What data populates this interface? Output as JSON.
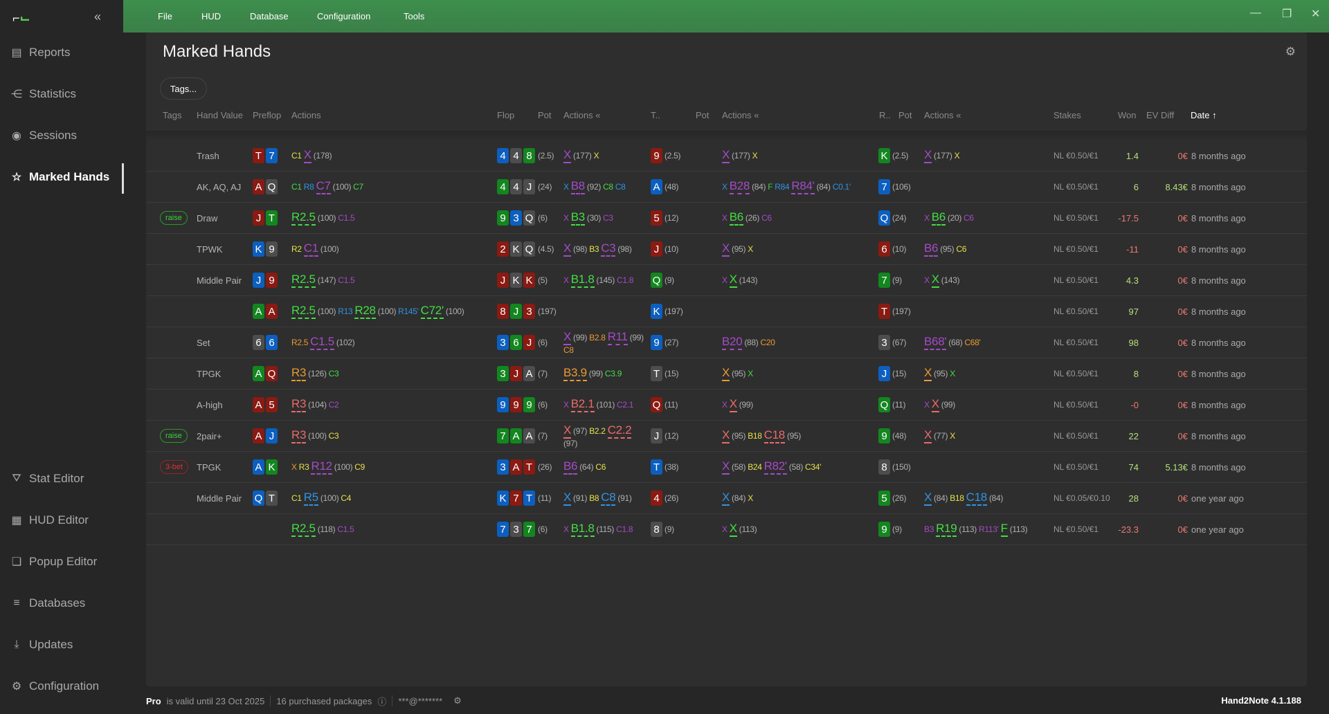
{
  "app": {
    "logo": "H",
    "version": "Hand2Note 4.1.188"
  },
  "menu": [
    "File",
    "HUD",
    "Database",
    "Configuration",
    "Tools"
  ],
  "sidebar": {
    "top": [
      {
        "label": "Reports",
        "icon": "report-icon"
      },
      {
        "label": "Statistics",
        "icon": "statistics-icon"
      },
      {
        "label": "Sessions",
        "icon": "sessions-icon"
      },
      {
        "label": "Marked Hands",
        "icon": "marked-hands-icon",
        "active": true
      }
    ],
    "bottom": [
      {
        "label": "Stat Editor",
        "icon": "filter-icon"
      },
      {
        "label": "HUD Editor",
        "icon": "hud-editor-icon"
      },
      {
        "label": "Popup Editor",
        "icon": "popup-editor-icon"
      },
      {
        "label": "Databases",
        "icon": "database-icon"
      },
      {
        "label": "Updates",
        "icon": "download-icon"
      },
      {
        "label": "Configuration",
        "icon": "gear-icon"
      }
    ]
  },
  "page": {
    "title": "Marked Hands",
    "tags_button": "Tags..."
  },
  "columns": {
    "tags": "Tags",
    "hand_value": "Hand Value",
    "preflop": "Preflop",
    "pf_actions": "Actions",
    "flop": "Flop",
    "flop_pot": "Pot",
    "flop_actions": "Actions",
    "turn": "T..",
    "turn_pot": "Pot",
    "turn_actions": "Actions",
    "river": "R..",
    "river_pot": "Pot",
    "river_actions": "Actions",
    "stakes": "Stakes",
    "won": "Won",
    "ev": "EV Diff",
    "date": "Date ↑"
  },
  "colors": {
    "r": "#8a1a12",
    "b": "#0c5fbf",
    "g": "#13861f",
    "s": "#4d4d4d",
    "ty": "#e6e24a",
    "tp": "#a64ac9",
    "tg": "#44dd44",
    "tb": "#2f93e6",
    "to": "#eb9a32",
    "tr": "#ec6a6a",
    "tf": "#44c444",
    "tw": "#b0b0b0",
    "pos": "#b6e07a",
    "neg": "#ea7a70"
  },
  "rows": [
    {
      "tag": "",
      "hv": "Trash",
      "pf": [
        "Tr",
        "7b"
      ],
      "pfa": [
        [
          "C1",
          "ty"
        ],
        [
          "X",
          "tp",
          1
        ],
        [
          "(178)",
          "tw"
        ]
      ],
      "flop": [
        "4b",
        "4s",
        "8g"
      ],
      "fp": "(2.5)",
      "fa": [
        [
          "X",
          "tp",
          1
        ],
        [
          "(177)",
          "tw"
        ],
        [
          "X",
          "ty"
        ]
      ],
      "turn": "9r",
      "tp": "(2.5)",
      "ta": [
        [
          "X",
          "tp",
          1
        ],
        [
          "(177)",
          "tw"
        ],
        [
          "X",
          "ty"
        ]
      ],
      "river": "Kg",
      "rp": "(2.5)",
      "ra": [
        [
          "X",
          "tp",
          1
        ],
        [
          "(177)",
          "tw"
        ],
        [
          "X",
          "ty"
        ]
      ],
      "stakes": "NL €0.50/€1",
      "won": "1.4",
      "ev": "0€",
      "date": "8 months ago"
    },
    {
      "tag": "",
      "hv": "AK, AQ, AJ",
      "pf": [
        "Ar",
        "Qs"
      ],
      "pfa": [
        [
          "C1",
          "tg"
        ],
        [
          "R8",
          "tb"
        ],
        [
          "C7",
          "tp",
          1
        ],
        [
          "(100)",
          "tw"
        ],
        [
          "C7",
          "tg"
        ]
      ],
      "flop": [
        "4g",
        "4s",
        "Js"
      ],
      "fp": "(24)",
      "fa": [
        [
          "X",
          "tb"
        ],
        [
          "B8",
          "tp",
          1
        ],
        [
          "(92)",
          "tw"
        ],
        [
          "C8",
          "tg"
        ],
        [
          "C8",
          "tb"
        ]
      ],
      "turn": "Ab",
      "tp": "(48)",
      "ta": [
        [
          "X",
          "tb"
        ],
        [
          "B28",
          "tp",
          1
        ],
        [
          "(84)",
          "tw"
        ],
        [
          "F",
          "tf"
        ],
        [
          "R84",
          "tb"
        ],
        [
          "R84'",
          "tp",
          1
        ],
        [
          "(84)",
          "tw"
        ],
        [
          "C0.1'",
          "tb"
        ]
      ],
      "river": "7b",
      "rp": "(106)",
      "ra": [],
      "stakes": "NL €0.50/€1",
      "won": "6",
      "ev": "8.43€",
      "date": "8 months ago"
    },
    {
      "tag": "raise",
      "hv": "Draw",
      "pf": [
        "Jr",
        "Tg"
      ],
      "pfa": [
        [
          "R2.5",
          "tg",
          1
        ],
        [
          "(100)",
          "tw"
        ],
        [
          "C1.5",
          "tp"
        ]
      ],
      "flop": [
        "9g",
        "3b",
        "Qs"
      ],
      "fp": "(6)",
      "fa": [
        [
          "X",
          "tp"
        ],
        [
          "B3",
          "tg",
          1
        ],
        [
          "(30)",
          "tw"
        ],
        [
          "C3",
          "tp"
        ]
      ],
      "turn": "5r",
      "tp": "(12)",
      "ta": [
        [
          "X",
          "tp"
        ],
        [
          "B6",
          "tg",
          1
        ],
        [
          "(26)",
          "tw"
        ],
        [
          "C6",
          "tp"
        ]
      ],
      "river": "Qb",
      "rp": "(24)",
      "ra": [
        [
          "X",
          "tp"
        ],
        [
          "B6",
          "tg",
          1
        ],
        [
          "(20)",
          "tw"
        ],
        [
          "C6",
          "tp"
        ]
      ],
      "stakes": "NL €0.50/€1",
      "won": "-17.5",
      "ev": "0€",
      "date": "8 months ago"
    },
    {
      "tag": "",
      "hv": "TPWK",
      "pf": [
        "Kb",
        "9s"
      ],
      "pfa": [
        [
          "R2",
          "ty"
        ],
        [
          "C1",
          "tp",
          1
        ],
        [
          "(100)",
          "tw"
        ]
      ],
      "flop": [
        "2r",
        "Ks",
        "Qs"
      ],
      "fp": "(4.5)",
      "fa": [
        [
          "X",
          "tp",
          1
        ],
        [
          "(98)",
          "tw"
        ],
        [
          "B3",
          "ty"
        ],
        [
          "C3",
          "tp",
          1
        ],
        [
          "(98)",
          "tw"
        ]
      ],
      "turn": "Jr",
      "tp": "(10)",
      "ta": [
        [
          "X",
          "tp",
          1
        ],
        [
          "(95)",
          "tw"
        ],
        [
          "X",
          "ty"
        ]
      ],
      "river": "6r",
      "rp": "(10)",
      "ra": [
        [
          "B6",
          "tp",
          1
        ],
        [
          "(95)",
          "tw"
        ],
        [
          "C6",
          "ty"
        ]
      ],
      "stakes": "NL €0.50/€1",
      "won": "-11",
      "ev": "0€",
      "date": "8 months ago"
    },
    {
      "tag": "",
      "hv": "Middle Pair",
      "pf": [
        "Jb",
        "9r"
      ],
      "pfa": [
        [
          "R2.5",
          "tg",
          1
        ],
        [
          "(147)",
          "tw"
        ],
        [
          "C1.5",
          "tp"
        ]
      ],
      "flop": [
        "Jr",
        "Ks",
        "Kr"
      ],
      "fp": "(5)",
      "fa": [
        [
          "X",
          "tp"
        ],
        [
          "B1.8",
          "tg",
          1
        ],
        [
          "(145)",
          "tw"
        ],
        [
          "C1.8",
          "tp"
        ]
      ],
      "turn": "Qg",
      "tp": "(9)",
      "ta": [
        [
          "X",
          "tp"
        ],
        [
          "X",
          "tg",
          1
        ],
        [
          "(143)",
          "tw"
        ]
      ],
      "river": "7g",
      "rp": "(9)",
      "ra": [
        [
          "X",
          "tp"
        ],
        [
          "X",
          "tg",
          1
        ],
        [
          "(143)",
          "tw"
        ]
      ],
      "stakes": "NL €0.50/€1",
      "won": "4.3",
      "ev": "0€",
      "date": "8 months ago"
    },
    {
      "tag": "",
      "hv": "",
      "pf": [
        "Ag",
        "Ar"
      ],
      "pfa": [
        [
          "R2.5",
          "tg",
          1
        ],
        [
          "(100)",
          "tw"
        ],
        [
          "R13",
          "tb"
        ],
        [
          "R28",
          "tg",
          1
        ],
        [
          "(100)",
          "tw"
        ],
        [
          "R145'",
          "tb"
        ],
        [
          "C72'",
          "tg",
          1
        ],
        [
          "(100)",
          "tw"
        ]
      ],
      "flop": [
        "8r",
        "Jg",
        "3r"
      ],
      "fp": "(197)",
      "fa": [],
      "turn": "Kb",
      "tp": "(197)",
      "ta": [],
      "river": "Tr",
      "rp": "(197)",
      "ra": [],
      "stakes": "NL €0.50/€1",
      "won": "97",
      "ev": "0€",
      "date": "8 months ago"
    },
    {
      "tag": "",
      "hv": "Set",
      "pf": [
        "6s",
        "6b"
      ],
      "pfa": [
        [
          "R2.5",
          "to"
        ],
        [
          "C1.5",
          "tp",
          1
        ],
        [
          "(102)",
          "tw"
        ]
      ],
      "flop": [
        "3b",
        "6g",
        "Jr"
      ],
      "fp": "(6)",
      "fa": [
        [
          "X",
          "tp",
          1
        ],
        [
          "(99)",
          "tw"
        ],
        [
          "B2.8",
          "to"
        ],
        [
          "R11",
          "tp",
          1
        ],
        [
          "(99)",
          "tw"
        ],
        [
          "C8",
          "to"
        ]
      ],
      "turn": "9b",
      "tp": "(27)",
      "ta": [
        [
          "B20",
          "tp",
          1
        ],
        [
          "(88)",
          "tw"
        ],
        [
          "C20",
          "to"
        ]
      ],
      "river": "3s",
      "rp": "(67)",
      "ra": [
        [
          "B68'",
          "tp",
          1
        ],
        [
          "(68)",
          "tw"
        ],
        [
          "C68'",
          "to"
        ]
      ],
      "stakes": "NL €0.50/€1",
      "won": "98",
      "ev": "0€",
      "date": "8 months ago"
    },
    {
      "tag": "",
      "hv": "TPGK",
      "pf": [
        "Ag",
        "Qr"
      ],
      "pfa": [
        [
          "R3",
          "to",
          1
        ],
        [
          "(126)",
          "tw"
        ],
        [
          "C3",
          "tg"
        ]
      ],
      "flop": [
        "3g",
        "Jr",
        "As"
      ],
      "fp": "(7)",
      "fa": [
        [
          "B3.9",
          "to",
          1
        ],
        [
          "(99)",
          "tw"
        ],
        [
          "C3.9",
          "tg"
        ]
      ],
      "turn": "Ts",
      "tp": "(15)",
      "ta": [
        [
          "X",
          "to",
          1
        ],
        [
          "(95)",
          "tw"
        ],
        [
          "X",
          "tg"
        ]
      ],
      "river": "Jb",
      "rp": "(15)",
      "ra": [
        [
          "X",
          "to",
          1
        ],
        [
          "(95)",
          "tw"
        ],
        [
          "X",
          "tg"
        ]
      ],
      "stakes": "NL €0.50/€1",
      "won": "8",
      "ev": "0€",
      "date": "8 months ago"
    },
    {
      "tag": "",
      "hv": "A-high",
      "pf": [
        "Ar",
        "5r"
      ],
      "pfa": [
        [
          "R3",
          "tr",
          1
        ],
        [
          "(104)",
          "tw"
        ],
        [
          "C2",
          "tp"
        ]
      ],
      "flop": [
        "9b",
        "9r",
        "9g"
      ],
      "fp": "(6)",
      "fa": [
        [
          "X",
          "tp"
        ],
        [
          "B2.1",
          "tr",
          1
        ],
        [
          "(101)",
          "tw"
        ],
        [
          "C2.1",
          "tp"
        ]
      ],
      "turn": "Qr",
      "tp": "(11)",
      "ta": [
        [
          "X",
          "tp"
        ],
        [
          "X",
          "tr",
          1
        ],
        [
          "(99)",
          "tw"
        ]
      ],
      "river": "Qg",
      "rp": "(11)",
      "ra": [
        [
          "X",
          "tp"
        ],
        [
          "X",
          "tr",
          1
        ],
        [
          "(99)",
          "tw"
        ]
      ],
      "stakes": "NL €0.50/€1",
      "won": "-0",
      "ev": "0€",
      "date": "8 months ago"
    },
    {
      "tag": "raise",
      "hv": "2pair+",
      "pf": [
        "Ar",
        "Jb"
      ],
      "pfa": [
        [
          "R3",
          "tr",
          1
        ],
        [
          "(100)",
          "tw"
        ],
        [
          "C3",
          "ty"
        ]
      ],
      "flop": [
        "7g",
        "Ag",
        "As"
      ],
      "fp": "(7)",
      "fa": [
        [
          "X",
          "tr",
          1
        ],
        [
          "(97)",
          "tw"
        ],
        [
          "B2.2",
          "ty"
        ],
        [
          "C2.2",
          "tr",
          1
        ],
        [
          "(97)",
          "tw"
        ]
      ],
      "turn": "Js",
      "tp": "(12)",
      "ta": [
        [
          "X",
          "tr",
          1
        ],
        [
          "(95)",
          "tw"
        ],
        [
          "B18",
          "ty"
        ],
        [
          "C18",
          "tr",
          1
        ],
        [
          "(95)",
          "tw"
        ]
      ],
      "river": "9g",
      "rp": "(48)",
      "ra": [
        [
          "X",
          "tr",
          1
        ],
        [
          "(77)",
          "tw"
        ],
        [
          "X",
          "ty"
        ]
      ],
      "stakes": "NL €0.50/€1",
      "won": "22",
      "ev": "0€",
      "date": "8 months ago"
    },
    {
      "tag": "3-bet",
      "hv": "TPGK",
      "pf": [
        "Ab",
        "Kg"
      ],
      "pfa": [
        [
          "X",
          "to"
        ],
        [
          "R3",
          "ty"
        ],
        [
          "R12",
          "tp",
          1
        ],
        [
          "(100)",
          "tw"
        ],
        [
          "C9",
          "ty"
        ]
      ],
      "flop": [
        "3b",
        "Ar",
        "Tr"
      ],
      "fp": "(26)",
      "fa": [
        [
          "B6",
          "tp",
          1
        ],
        [
          "(64)",
          "tw"
        ],
        [
          "C6",
          "ty"
        ]
      ],
      "turn": "Tb",
      "tp": "(38)",
      "ta": [
        [
          "X",
          "tp",
          1
        ],
        [
          "(58)",
          "tw"
        ],
        [
          "B24",
          "ty"
        ],
        [
          "R82'",
          "tp",
          1
        ],
        [
          "(58)",
          "tw"
        ],
        [
          "C34'",
          "ty"
        ]
      ],
      "river": "8s",
      "rp": "(150)",
      "ra": [],
      "stakes": "NL €0.50/€1",
      "won": "74",
      "ev": "5.13€",
      "date": "8 months ago"
    },
    {
      "tag": "",
      "hv": "Middle Pair",
      "pf": [
        "Qb",
        "Ts"
      ],
      "pfa": [
        [
          "C1",
          "ty"
        ],
        [
          "R5",
          "tb",
          1
        ],
        [
          "(100)",
          "tw"
        ],
        [
          "C4",
          "ty"
        ]
      ],
      "flop": [
        "Kb",
        "7r",
        "Tb"
      ],
      "fp": "(11)",
      "fa": [
        [
          "X",
          "tb",
          1
        ],
        [
          "(91)",
          "tw"
        ],
        [
          "B8",
          "ty"
        ],
        [
          "C8",
          "tb",
          1
        ],
        [
          "(91)",
          "tw"
        ]
      ],
      "turn": "4r",
      "tp": "(26)",
      "ta": [
        [
          "X",
          "tb",
          1
        ],
        [
          "(84)",
          "tw"
        ],
        [
          "X",
          "ty"
        ]
      ],
      "river": "5g",
      "rp": "(26)",
      "ra": [
        [
          "X",
          "tb",
          1
        ],
        [
          "(84)",
          "tw"
        ],
        [
          "B18",
          "ty"
        ],
        [
          "C18",
          "tb",
          1
        ],
        [
          "(84)",
          "tw"
        ]
      ],
      "stakes": "NL €0.05/€0.10",
      "won": "28",
      "ev": "0€",
      "date": "one year ago"
    },
    {
      "tag": "",
      "hv": "",
      "pf": [],
      "pfa": [
        [
          "R2.5",
          "tg",
          1
        ],
        [
          "(118)",
          "tw"
        ],
        [
          "C1.5",
          "tp"
        ]
      ],
      "flop": [
        "7b",
        "3s",
        "7g"
      ],
      "fp": "(6)",
      "fa": [
        [
          "X",
          "tp"
        ],
        [
          "B1.8",
          "tg",
          1
        ],
        [
          "(115)",
          "tw"
        ],
        [
          "C1.8",
          "tp"
        ]
      ],
      "turn": "8s",
      "tp": "(9)",
      "ta": [
        [
          "X",
          "tp"
        ],
        [
          "X",
          "tg",
          1
        ],
        [
          "(113)",
          "tw"
        ]
      ],
      "river": "9g",
      "rp": "(9)",
      "ra": [
        [
          "B3",
          "tp"
        ],
        [
          "R19",
          "tg",
          1
        ],
        [
          "(113)",
          "tw"
        ],
        [
          "R113'",
          "tp"
        ],
        [
          "F",
          "tg",
          1
        ],
        [
          "(113)",
          "tw"
        ]
      ],
      "stakes": "NL €0.50/€1",
      "won": "-23.3",
      "ev": "0€",
      "date": "one year ago"
    }
  ],
  "footer": {
    "plan": "Pro",
    "valid": "is valid until 23 Oct 2025",
    "packages": "16 purchased packages",
    "account": "***@*******"
  }
}
